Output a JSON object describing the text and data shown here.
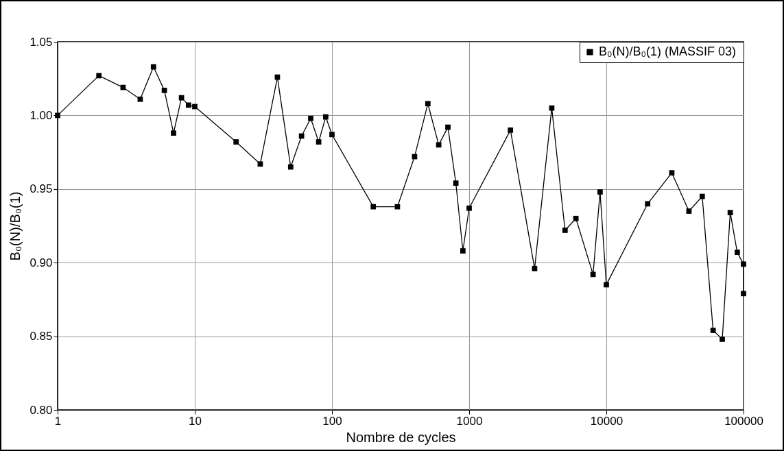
{
  "chart_data": {
    "type": "line",
    "xlabel": "Nombre de cycles",
    "ylabel": "B₀(N)/B₀(1)",
    "log": "x",
    "grid": true,
    "legend": "top right",
    "marker": "square",
    "line_style": "solid",
    "xlim": [
      1,
      100000
    ],
    "xticks": [
      1,
      10,
      100,
      1000,
      10000,
      100000
    ],
    "ylim": [
      0.8,
      1.05
    ],
    "yticks": [
      {
        "value": 0.8,
        "label": "0.80"
      },
      {
        "value": 0.85,
        "label": "0.85"
      },
      {
        "value": 0.9,
        "label": "0.90"
      },
      {
        "value": 0.95,
        "label": "0.95"
      },
      {
        "value": 1.0,
        "label": "1.00"
      },
      {
        "value": 1.05,
        "label": "1.05"
      }
    ],
    "series": [
      {
        "name": "B₀(N)/B₀(1)  (MASSIF 03)",
        "color": "#000000",
        "x": [
          1,
          2,
          3,
          4,
          5,
          6,
          7,
          8,
          9,
          10,
          20,
          30,
          40,
          50,
          60,
          70,
          80,
          90,
          100,
          200,
          300,
          400,
          500,
          600,
          700,
          800,
          900,
          1000,
          2000,
          3000,
          4000,
          5000,
          6000,
          8000,
          9000,
          10000,
          20000,
          30000,
          40000,
          50000,
          60000,
          70000,
          80000,
          90000,
          100000,
          100000
        ],
        "values": [
          1.0,
          1.027,
          1.019,
          1.011,
          1.033,
          1.017,
          0.988,
          1.012,
          1.007,
          1.006,
          0.982,
          0.967,
          1.026,
          0.965,
          0.986,
          0.998,
          0.982,
          0.999,
          0.987,
          0.938,
          0.938,
          0.972,
          1.008,
          0.98,
          0.992,
          0.954,
          0.908,
          0.937,
          0.99,
          0.896,
          1.005,
          0.922,
          0.93,
          0.892,
          0.948,
          0.885,
          0.94,
          0.961,
          0.935,
          0.945,
          0.854,
          0.848,
          0.934,
          0.907,
          0.899,
          0.879
        ]
      }
    ]
  }
}
